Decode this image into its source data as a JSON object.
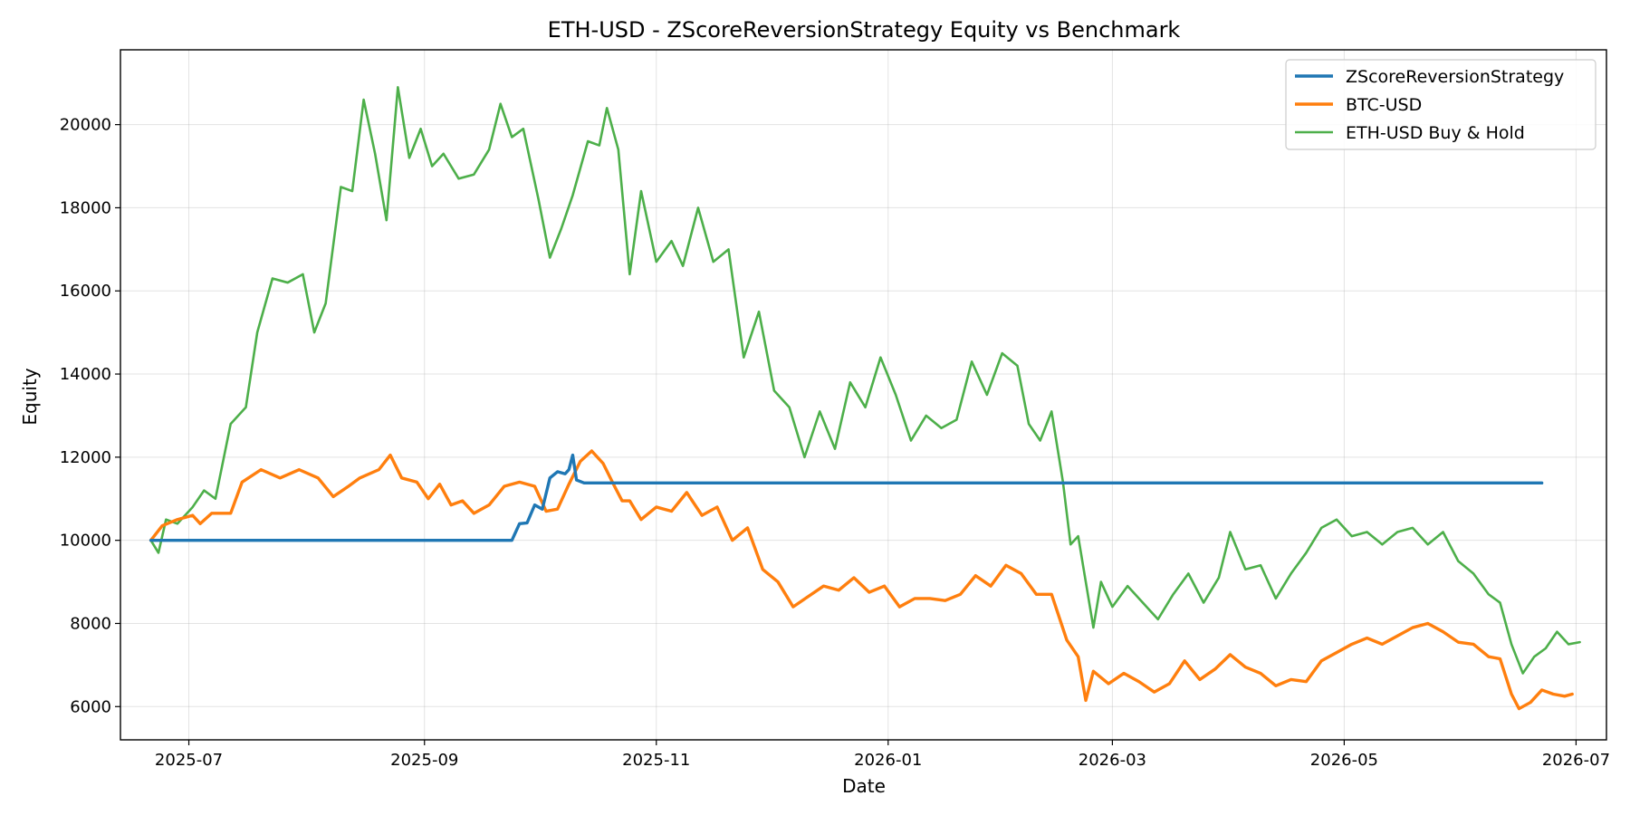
{
  "chart_data": {
    "type": "line",
    "title": "ETH-USD - ZScoreReversionStrategy Equity vs Benchmark",
    "xlabel": "Date",
    "ylabel": "Equity",
    "xlim": [
      "2025-06-13",
      "2026-07-09"
    ],
    "ylim": [
      5200,
      21800
    ],
    "grid": true,
    "legend_position": "top-right",
    "x_ticks": [
      "2025-07",
      "2025-09",
      "2025-11",
      "2026-01",
      "2026-03",
      "2026-05",
      "2026-07"
    ],
    "y_ticks": [
      6000,
      8000,
      10000,
      12000,
      14000,
      16000,
      18000,
      20000
    ],
    "series": [
      {
        "name": "ZScoreReversionStrategy",
        "color": "#1f77b4",
        "points": [
          [
            "2025-06-21",
            10000
          ],
          [
            "2025-09-24",
            10000
          ],
          [
            "2025-09-26",
            10400
          ],
          [
            "2025-09-28",
            10420
          ],
          [
            "2025-09-30",
            10850
          ],
          [
            "2025-10-02",
            10750
          ],
          [
            "2025-10-04",
            11500
          ],
          [
            "2025-10-06",
            11650
          ],
          [
            "2025-10-08",
            11600
          ],
          [
            "2025-10-09",
            11700
          ],
          [
            "2025-10-10",
            12050
          ],
          [
            "2025-10-11",
            11450
          ],
          [
            "2025-10-13",
            11380
          ],
          [
            "2026-06-22",
            11380
          ]
        ]
      },
      {
        "name": "BTC-USD",
        "color": "#ff7f0e",
        "points": [
          [
            "2025-06-21",
            10000
          ],
          [
            "2025-06-24",
            10350
          ],
          [
            "2025-06-28",
            10500
          ],
          [
            "2025-07-02",
            10600
          ],
          [
            "2025-07-04",
            10400
          ],
          [
            "2025-07-07",
            10650
          ],
          [
            "2025-07-12",
            10650
          ],
          [
            "2025-07-15",
            11400
          ],
          [
            "2025-07-20",
            11700
          ],
          [
            "2025-07-25",
            11500
          ],
          [
            "2025-07-30",
            11700
          ],
          [
            "2025-08-04",
            11500
          ],
          [
            "2025-08-08",
            11050
          ],
          [
            "2025-08-12",
            11300
          ],
          [
            "2025-08-15",
            11500
          ],
          [
            "2025-08-20",
            11700
          ],
          [
            "2025-08-23",
            12050
          ],
          [
            "2025-08-26",
            11500
          ],
          [
            "2025-08-30",
            11400
          ],
          [
            "2025-09-02",
            11000
          ],
          [
            "2025-09-05",
            11350
          ],
          [
            "2025-09-08",
            10850
          ],
          [
            "2025-09-11",
            10950
          ],
          [
            "2025-09-14",
            10650
          ],
          [
            "2025-09-18",
            10850
          ],
          [
            "2025-09-22",
            11300
          ],
          [
            "2025-09-26",
            11400
          ],
          [
            "2025-09-30",
            11300
          ],
          [
            "2025-10-03",
            10700
          ],
          [
            "2025-10-06",
            10750
          ],
          [
            "2025-10-09",
            11350
          ],
          [
            "2025-10-12",
            11900
          ],
          [
            "2025-10-15",
            12150
          ],
          [
            "2025-10-18",
            11850
          ],
          [
            "2025-10-21",
            11300
          ],
          [
            "2025-10-23",
            10950
          ],
          [
            "2025-10-25",
            10950
          ],
          [
            "2025-10-28",
            10500
          ],
          [
            "2025-11-01",
            10800
          ],
          [
            "2025-11-05",
            10700
          ],
          [
            "2025-11-09",
            11150
          ],
          [
            "2025-11-13",
            10600
          ],
          [
            "2025-11-17",
            10800
          ],
          [
            "2025-11-21",
            10000
          ],
          [
            "2025-11-25",
            10300
          ],
          [
            "2025-11-29",
            9300
          ],
          [
            "2025-12-03",
            9000
          ],
          [
            "2025-12-07",
            8400
          ],
          [
            "2025-12-11",
            8650
          ],
          [
            "2025-12-15",
            8900
          ],
          [
            "2025-12-19",
            8800
          ],
          [
            "2025-12-23",
            9100
          ],
          [
            "2025-12-27",
            8750
          ],
          [
            "2025-12-31",
            8900
          ],
          [
            "2026-01-04",
            8400
          ],
          [
            "2026-01-08",
            8600
          ],
          [
            "2026-01-12",
            8600
          ],
          [
            "2026-01-16",
            8550
          ],
          [
            "2026-01-20",
            8700
          ],
          [
            "2026-01-24",
            9150
          ],
          [
            "2026-01-28",
            8900
          ],
          [
            "2026-02-01",
            9400
          ],
          [
            "2026-02-05",
            9200
          ],
          [
            "2026-02-09",
            8700
          ],
          [
            "2026-02-13",
            8700
          ],
          [
            "2026-02-17",
            7600
          ],
          [
            "2026-02-20",
            7200
          ],
          [
            "2026-02-22",
            6150
          ],
          [
            "2026-02-24",
            6850
          ],
          [
            "2026-02-28",
            6550
          ],
          [
            "2026-03-04",
            6800
          ],
          [
            "2026-03-08",
            6600
          ],
          [
            "2026-03-12",
            6350
          ],
          [
            "2026-03-16",
            6550
          ],
          [
            "2026-03-20",
            7100
          ],
          [
            "2026-03-24",
            6650
          ],
          [
            "2026-03-28",
            6900
          ],
          [
            "2026-04-01",
            7250
          ],
          [
            "2026-04-05",
            6950
          ],
          [
            "2026-04-09",
            6800
          ],
          [
            "2026-04-13",
            6500
          ],
          [
            "2026-04-17",
            6650
          ],
          [
            "2026-04-21",
            6600
          ],
          [
            "2026-04-25",
            7100
          ],
          [
            "2026-04-29",
            7300
          ],
          [
            "2026-05-03",
            7500
          ],
          [
            "2026-05-07",
            7650
          ],
          [
            "2026-05-11",
            7500
          ],
          [
            "2026-05-15",
            7700
          ],
          [
            "2026-05-19",
            7900
          ],
          [
            "2026-05-23",
            8000
          ],
          [
            "2026-05-27",
            7800
          ],
          [
            "2026-05-31",
            7550
          ],
          [
            "2026-06-04",
            7500
          ],
          [
            "2026-06-08",
            7200
          ],
          [
            "2026-06-11",
            7150
          ],
          [
            "2026-06-14",
            6300
          ],
          [
            "2026-06-16",
            5950
          ],
          [
            "2026-06-19",
            6100
          ],
          [
            "2026-06-22",
            6400
          ],
          [
            "2026-06-25",
            6300
          ],
          [
            "2026-06-28",
            6250
          ],
          [
            "2026-06-30",
            6300
          ]
        ]
      },
      {
        "name": "ETH-USD Buy & Hold",
        "color": "#4daf4a",
        "points": [
          [
            "2025-06-21",
            10000
          ],
          [
            "2025-06-23",
            9700
          ],
          [
            "2025-06-25",
            10500
          ],
          [
            "2025-06-28",
            10400
          ],
          [
            "2025-07-02",
            10800
          ],
          [
            "2025-07-05",
            11200
          ],
          [
            "2025-07-08",
            11000
          ],
          [
            "2025-07-12",
            12800
          ],
          [
            "2025-07-16",
            13200
          ],
          [
            "2025-07-19",
            15000
          ],
          [
            "2025-07-23",
            16300
          ],
          [
            "2025-07-27",
            16200
          ],
          [
            "2025-07-31",
            16400
          ],
          [
            "2025-08-03",
            15000
          ],
          [
            "2025-08-06",
            15700
          ],
          [
            "2025-08-10",
            18500
          ],
          [
            "2025-08-13",
            18400
          ],
          [
            "2025-08-16",
            20600
          ],
          [
            "2025-08-19",
            19300
          ],
          [
            "2025-08-22",
            17700
          ],
          [
            "2025-08-25",
            20900
          ],
          [
            "2025-08-28",
            19200
          ],
          [
            "2025-08-31",
            19900
          ],
          [
            "2025-09-03",
            19000
          ],
          [
            "2025-09-06",
            19300
          ],
          [
            "2025-09-10",
            18700
          ],
          [
            "2025-09-14",
            18800
          ],
          [
            "2025-09-18",
            19400
          ],
          [
            "2025-09-21",
            20500
          ],
          [
            "2025-09-24",
            19700
          ],
          [
            "2025-09-27",
            19900
          ],
          [
            "2025-10-01",
            18200
          ],
          [
            "2025-10-04",
            16800
          ],
          [
            "2025-10-07",
            17500
          ],
          [
            "2025-10-10",
            18300
          ],
          [
            "2025-10-14",
            19600
          ],
          [
            "2025-10-17",
            19500
          ],
          [
            "2025-10-19",
            20400
          ],
          [
            "2025-10-22",
            19400
          ],
          [
            "2025-10-25",
            16400
          ],
          [
            "2025-10-28",
            18400
          ],
          [
            "2025-11-01",
            16700
          ],
          [
            "2025-11-05",
            17200
          ],
          [
            "2025-11-08",
            16600
          ],
          [
            "2025-11-12",
            18000
          ],
          [
            "2025-11-16",
            16700
          ],
          [
            "2025-11-20",
            17000
          ],
          [
            "2025-11-24",
            14400
          ],
          [
            "2025-11-28",
            15500
          ],
          [
            "2025-12-02",
            13600
          ],
          [
            "2025-12-06",
            13200
          ],
          [
            "2025-12-10",
            12000
          ],
          [
            "2025-12-14",
            13100
          ],
          [
            "2025-12-18",
            12200
          ],
          [
            "2025-12-22",
            13800
          ],
          [
            "2025-12-26",
            13200
          ],
          [
            "2025-12-30",
            14400
          ],
          [
            "2026-01-03",
            13500
          ],
          [
            "2026-01-07",
            12400
          ],
          [
            "2026-01-11",
            13000
          ],
          [
            "2026-01-15",
            12700
          ],
          [
            "2026-01-19",
            12900
          ],
          [
            "2026-01-23",
            14300
          ],
          [
            "2026-01-27",
            13500
          ],
          [
            "2026-01-31",
            14500
          ],
          [
            "2026-02-04",
            14200
          ],
          [
            "2026-02-07",
            12800
          ],
          [
            "2026-02-10",
            12400
          ],
          [
            "2026-02-13",
            13100
          ],
          [
            "2026-02-16",
            11400
          ],
          [
            "2026-02-18",
            9900
          ],
          [
            "2026-02-20",
            10100
          ],
          [
            "2026-02-22",
            9000
          ],
          [
            "2026-02-24",
            7900
          ],
          [
            "2026-02-26",
            9000
          ],
          [
            "2026-03-01",
            8400
          ],
          [
            "2026-03-05",
            8900
          ],
          [
            "2026-03-09",
            8500
          ],
          [
            "2026-03-13",
            8100
          ],
          [
            "2026-03-17",
            8700
          ],
          [
            "2026-03-21",
            9200
          ],
          [
            "2026-03-25",
            8500
          ],
          [
            "2026-03-29",
            9100
          ],
          [
            "2026-04-01",
            10200
          ],
          [
            "2026-04-05",
            9300
          ],
          [
            "2026-04-09",
            9400
          ],
          [
            "2026-04-13",
            8600
          ],
          [
            "2026-04-17",
            9200
          ],
          [
            "2026-04-21",
            9700
          ],
          [
            "2026-04-25",
            10300
          ],
          [
            "2026-04-29",
            10500
          ],
          [
            "2026-05-03",
            10100
          ],
          [
            "2026-05-07",
            10200
          ],
          [
            "2026-05-11",
            9900
          ],
          [
            "2026-05-15",
            10200
          ],
          [
            "2026-05-19",
            10300
          ],
          [
            "2026-05-23",
            9900
          ],
          [
            "2026-05-27",
            10200
          ],
          [
            "2026-05-31",
            9500
          ],
          [
            "2026-06-04",
            9200
          ],
          [
            "2026-06-08",
            8700
          ],
          [
            "2026-06-11",
            8500
          ],
          [
            "2026-06-14",
            7500
          ],
          [
            "2026-06-17",
            6800
          ],
          [
            "2026-06-20",
            7200
          ],
          [
            "2026-06-23",
            7400
          ],
          [
            "2026-06-26",
            7800
          ],
          [
            "2026-06-29",
            7500
          ],
          [
            "2026-07-02",
            7550
          ]
        ]
      }
    ]
  }
}
